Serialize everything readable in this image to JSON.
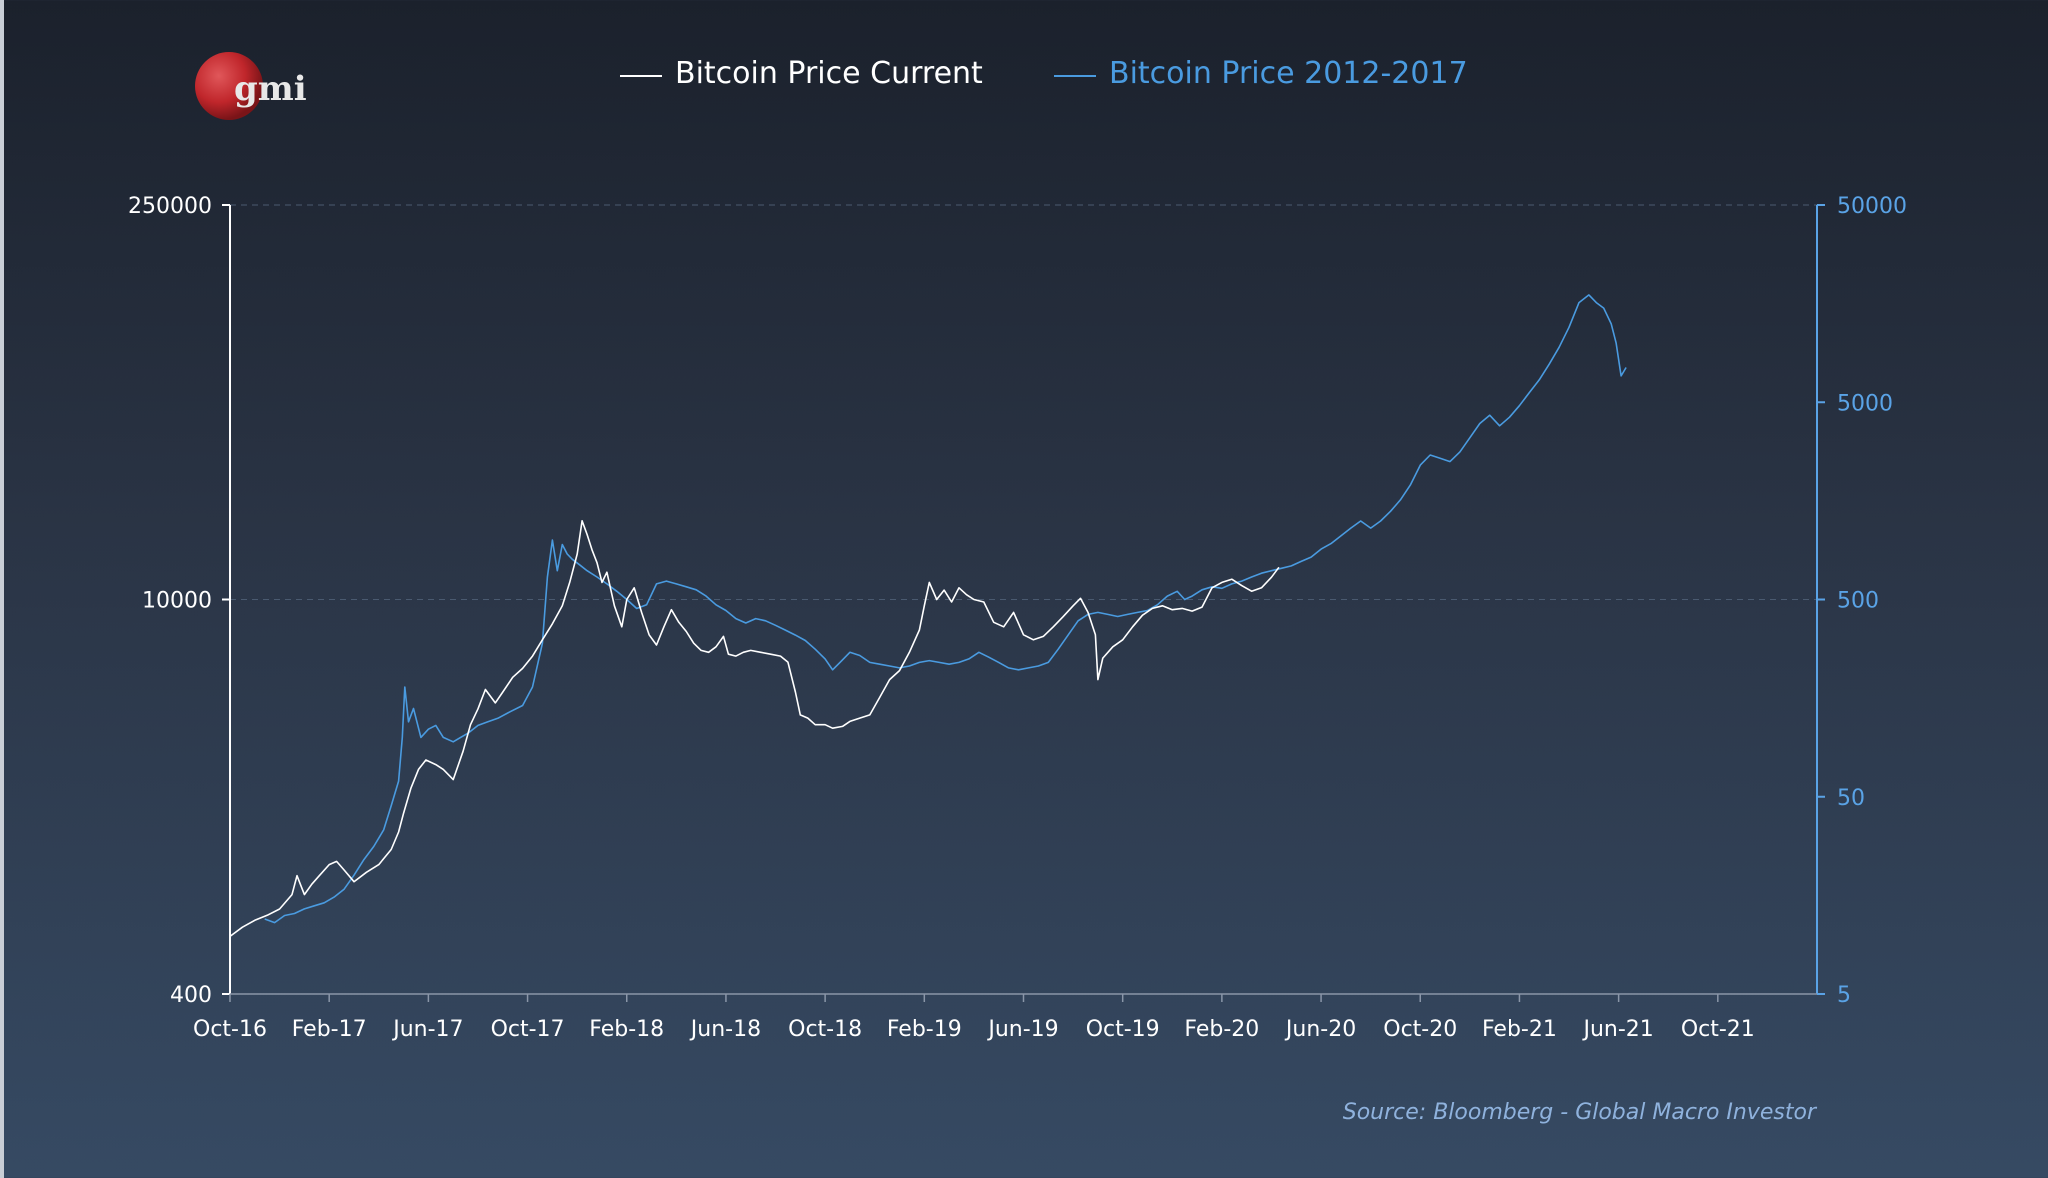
{
  "logo": {
    "text": "gmi"
  },
  "source": "Source: Bloomberg - Global Macro Investor",
  "colors": {
    "background_top": "#1b212c",
    "background_bottom": "#364a63",
    "current": "#ffffff",
    "history": "#4a9be0",
    "left_axis": "#ffffff",
    "right_axis": "#5aa3e6",
    "gridline": "#4a5a70",
    "logo_red": "#c0262b"
  },
  "chart_data": {
    "type": "line",
    "title": "",
    "legend": {
      "position": "top-center",
      "entries": [
        "Bitcoin Price Current",
        "Bitcoin Price 2012-2017"
      ]
    },
    "x_tick_labels": [
      "Oct-16",
      "Feb-17",
      "Jun-17",
      "Oct-17",
      "Feb-18",
      "Jun-18",
      "Oct-18",
      "Feb-19",
      "Jun-19",
      "Oct-19",
      "Feb-20",
      "Jun-20",
      "Oct-20",
      "Feb-21",
      "Jun-21",
      "Oct-21"
    ],
    "x_range_months": [
      0,
      64
    ],
    "y_left": {
      "scale": "log",
      "ticks": [
        "250000",
        "10000",
        "400"
      ],
      "range": [
        400,
        250000
      ]
    },
    "y_right": {
      "scale": "log",
      "ticks": [
        "50000",
        "5000",
        "500",
        "50",
        "5"
      ],
      "range": [
        5,
        50000
      ]
    },
    "grid": "horizontal dashed at major ticks",
    "series": [
      {
        "name": "Bitcoin Price Current",
        "axis": "left",
        "color": "#ffffff",
        "points": [
          [
            0.0,
            640
          ],
          [
            0.5,
            690
          ],
          [
            1.0,
            730
          ],
          [
            1.5,
            760
          ],
          [
            2.0,
            800
          ],
          [
            2.5,
            900
          ],
          [
            2.7,
            1050
          ],
          [
            3.0,
            900
          ],
          [
            3.3,
            980
          ],
          [
            3.6,
            1050
          ],
          [
            4.0,
            1150
          ],
          [
            4.3,
            1180
          ],
          [
            4.6,
            1100
          ],
          [
            5.0,
            1000
          ],
          [
            5.5,
            1080
          ],
          [
            6.0,
            1150
          ],
          [
            6.5,
            1300
          ],
          [
            6.8,
            1500
          ],
          [
            7.0,
            1750
          ],
          [
            7.3,
            2150
          ],
          [
            7.6,
            2500
          ],
          [
            7.9,
            2700
          ],
          [
            8.3,
            2600
          ],
          [
            8.6,
            2500
          ],
          [
            9.0,
            2300
          ],
          [
            9.4,
            2900
          ],
          [
            9.7,
            3600
          ],
          [
            10.0,
            4100
          ],
          [
            10.3,
            4800
          ],
          [
            10.7,
            4300
          ],
          [
            11.0,
            4700
          ],
          [
            11.4,
            5300
          ],
          [
            11.8,
            5700
          ],
          [
            12.2,
            6300
          ],
          [
            12.6,
            7200
          ],
          [
            13.0,
            8200
          ],
          [
            13.4,
            9500
          ],
          [
            13.7,
            11500
          ],
          [
            14.0,
            14500
          ],
          [
            14.2,
            19000
          ],
          [
            14.4,
            17000
          ],
          [
            14.6,
            15000
          ],
          [
            14.8,
            13500
          ],
          [
            15.0,
            11500
          ],
          [
            15.2,
            12500
          ],
          [
            15.5,
            9500
          ],
          [
            15.8,
            8000
          ],
          [
            16.0,
            10000
          ],
          [
            16.3,
            11000
          ],
          [
            16.6,
            9000
          ],
          [
            16.9,
            7500
          ],
          [
            17.2,
            6900
          ],
          [
            17.5,
            8000
          ],
          [
            17.8,
            9200
          ],
          [
            18.1,
            8300
          ],
          [
            18.4,
            7700
          ],
          [
            18.7,
            7000
          ],
          [
            19.0,
            6600
          ],
          [
            19.3,
            6500
          ],
          [
            19.6,
            6800
          ],
          [
            19.9,
            7400
          ],
          [
            20.1,
            6400
          ],
          [
            20.4,
            6300
          ],
          [
            20.7,
            6500
          ],
          [
            21.0,
            6600
          ],
          [
            21.4,
            6500
          ],
          [
            21.8,
            6400
          ],
          [
            22.2,
            6300
          ],
          [
            22.5,
            6000
          ],
          [
            22.8,
            4700
          ],
          [
            23.0,
            3900
          ],
          [
            23.3,
            3800
          ],
          [
            23.6,
            3600
          ],
          [
            24.0,
            3600
          ],
          [
            24.3,
            3500
          ],
          [
            24.7,
            3550
          ],
          [
            25.0,
            3700
          ],
          [
            25.4,
            3800
          ],
          [
            25.8,
            3900
          ],
          [
            26.2,
            4500
          ],
          [
            26.6,
            5200
          ],
          [
            27.0,
            5600
          ],
          [
            27.4,
            6500
          ],
          [
            27.8,
            7800
          ],
          [
            28.0,
            9500
          ],
          [
            28.2,
            11500
          ],
          [
            28.5,
            10000
          ],
          [
            28.8,
            10800
          ],
          [
            29.1,
            9800
          ],
          [
            29.4,
            11000
          ],
          [
            29.7,
            10400
          ],
          [
            30.0,
            10000
          ],
          [
            30.4,
            9800
          ],
          [
            30.8,
            8300
          ],
          [
            31.2,
            8000
          ],
          [
            31.6,
            9000
          ],
          [
            32.0,
            7500
          ],
          [
            32.4,
            7200
          ],
          [
            32.8,
            7400
          ],
          [
            33.2,
            8000
          ],
          [
            33.6,
            8700
          ],
          [
            34.0,
            9500
          ],
          [
            34.3,
            10100
          ],
          [
            34.6,
            9000
          ],
          [
            34.9,
            7500
          ],
          [
            35.0,
            5200
          ],
          [
            35.2,
            6200
          ],
          [
            35.6,
            6800
          ],
          [
            36.0,
            7200
          ],
          [
            36.4,
            8000
          ],
          [
            36.8,
            8800
          ],
          [
            37.2,
            9300
          ],
          [
            37.6,
            9500
          ],
          [
            38.0,
            9200
          ],
          [
            38.4,
            9300
          ],
          [
            38.8,
            9100
          ],
          [
            39.2,
            9400
          ],
          [
            39.6,
            11000
          ],
          [
            40.0,
            11500
          ],
          [
            40.4,
            11800
          ],
          [
            40.8,
            11200
          ],
          [
            41.2,
            10700
          ],
          [
            41.6,
            11000
          ],
          [
            42.0,
            12000
          ],
          [
            42.3,
            13000
          ]
        ]
      },
      {
        "name": "Bitcoin Price 2012-2017",
        "axis": "right",
        "color": "#4a9be0",
        "points": [
          [
            1.4,
            12.0
          ],
          [
            1.8,
            11.5
          ],
          [
            2.2,
            12.5
          ],
          [
            2.6,
            12.8
          ],
          [
            3.0,
            13.5
          ],
          [
            3.4,
            14.0
          ],
          [
            3.8,
            14.5
          ],
          [
            4.2,
            15.5
          ],
          [
            4.6,
            17.0
          ],
          [
            5.0,
            20.0
          ],
          [
            5.4,
            24.0
          ],
          [
            5.8,
            28.0
          ],
          [
            6.2,
            34.0
          ],
          [
            6.5,
            45.0
          ],
          [
            6.8,
            60.0
          ],
          [
            6.95,
            100.0
          ],
          [
            7.05,
            180.0
          ],
          [
            7.2,
            120.0
          ],
          [
            7.4,
            140.0
          ],
          [
            7.7,
            100.0
          ],
          [
            8.0,
            110.0
          ],
          [
            8.3,
            115.0
          ],
          [
            8.6,
            100.0
          ],
          [
            9.0,
            95.0
          ],
          [
            9.3,
            100.0
          ],
          [
            9.6,
            105.0
          ],
          [
            10.0,
            115.0
          ],
          [
            10.4,
            120.0
          ],
          [
            10.8,
            125.0
          ],
          [
            11.3,
            135.0
          ],
          [
            11.8,
            145.0
          ],
          [
            12.2,
            180.0
          ],
          [
            12.6,
            300.0
          ],
          [
            12.8,
            650.0
          ],
          [
            13.0,
            1000.0
          ],
          [
            13.2,
            700.0
          ],
          [
            13.4,
            950.0
          ],
          [
            13.6,
            850.0
          ],
          [
            13.8,
            800.0
          ],
          [
            14.1,
            750.0
          ],
          [
            14.4,
            700.0
          ],
          [
            14.8,
            650.0
          ],
          [
            15.2,
            600.0
          ],
          [
            15.6,
            550.0
          ],
          [
            16.0,
            500.0
          ],
          [
            16.4,
            450.0
          ],
          [
            16.8,
            470.0
          ],
          [
            17.2,
            600.0
          ],
          [
            17.6,
            620.0
          ],
          [
            18.0,
            600.0
          ],
          [
            18.4,
            580.0
          ],
          [
            18.8,
            560.0
          ],
          [
            19.2,
            520.0
          ],
          [
            19.6,
            470.0
          ],
          [
            20.0,
            440.0
          ],
          [
            20.4,
            400.0
          ],
          [
            20.8,
            380.0
          ],
          [
            21.2,
            400.0
          ],
          [
            21.6,
            390.0
          ],
          [
            22.0,
            370.0
          ],
          [
            22.4,
            350.0
          ],
          [
            22.8,
            330.0
          ],
          [
            23.2,
            310.0
          ],
          [
            23.6,
            280.0
          ],
          [
            24.0,
            250.0
          ],
          [
            24.3,
            220.0
          ],
          [
            24.6,
            240.0
          ],
          [
            25.0,
            270.0
          ],
          [
            25.4,
            260.0
          ],
          [
            25.8,
            240.0
          ],
          [
            26.2,
            235.0
          ],
          [
            26.6,
            230.0
          ],
          [
            27.0,
            225.0
          ],
          [
            27.4,
            230.0
          ],
          [
            27.8,
            240.0
          ],
          [
            28.2,
            245.0
          ],
          [
            28.6,
            240.0
          ],
          [
            29.0,
            235.0
          ],
          [
            29.4,
            240.0
          ],
          [
            29.8,
            250.0
          ],
          [
            30.2,
            270.0
          ],
          [
            30.6,
            255.0
          ],
          [
            31.0,
            240.0
          ],
          [
            31.4,
            225.0
          ],
          [
            31.8,
            220.0
          ],
          [
            32.2,
            225.0
          ],
          [
            32.6,
            230.0
          ],
          [
            33.0,
            240.0
          ],
          [
            33.4,
            280.0
          ],
          [
            33.8,
            330.0
          ],
          [
            34.2,
            390.0
          ],
          [
            34.6,
            420.0
          ],
          [
            35.0,
            430.0
          ],
          [
            35.4,
            420.0
          ],
          [
            35.8,
            410.0
          ],
          [
            36.2,
            420.0
          ],
          [
            36.6,
            430.0
          ],
          [
            37.0,
            440.0
          ],
          [
            37.4,
            470.0
          ],
          [
            37.8,
            520.0
          ],
          [
            38.2,
            550.0
          ],
          [
            38.5,
            500.0
          ],
          [
            38.8,
            520.0
          ],
          [
            39.2,
            560.0
          ],
          [
            39.6,
            580.0
          ],
          [
            40.0,
            570.0
          ],
          [
            40.4,
            600.0
          ],
          [
            40.8,
            620.0
          ],
          [
            41.2,
            650.0
          ],
          [
            41.6,
            680.0
          ],
          [
            42.0,
            700.0
          ],
          [
            42.4,
            720.0
          ],
          [
            42.8,
            740.0
          ],
          [
            43.2,
            780.0
          ],
          [
            43.6,
            820.0
          ],
          [
            44.0,
            900.0
          ],
          [
            44.4,
            960.0
          ],
          [
            44.8,
            1050.0
          ],
          [
            45.2,
            1150.0
          ],
          [
            45.6,
            1250.0
          ],
          [
            46.0,
            1150.0
          ],
          [
            46.4,
            1250.0
          ],
          [
            46.8,
            1400.0
          ],
          [
            47.2,
            1600.0
          ],
          [
            47.6,
            1900.0
          ],
          [
            48.0,
            2400.0
          ],
          [
            48.4,
            2700.0
          ],
          [
            48.8,
            2600.0
          ],
          [
            49.2,
            2500.0
          ],
          [
            49.6,
            2800.0
          ],
          [
            50.0,
            3300.0
          ],
          [
            50.4,
            3900.0
          ],
          [
            50.8,
            4300.0
          ],
          [
            51.2,
            3800.0
          ],
          [
            51.6,
            4200.0
          ],
          [
            52.0,
            4800.0
          ],
          [
            52.4,
            5600.0
          ],
          [
            52.8,
            6500.0
          ],
          [
            53.2,
            7800.0
          ],
          [
            53.6,
            9500.0
          ],
          [
            54.0,
            12000.0
          ],
          [
            54.4,
            16000.0
          ],
          [
            54.8,
            17500.0
          ],
          [
            55.1,
            16000.0
          ],
          [
            55.4,
            15000.0
          ],
          [
            55.7,
            12500.0
          ],
          [
            55.9,
            10000.0
          ],
          [
            56.1,
            6800.0
          ],
          [
            56.3,
            7500.0
          ]
        ]
      }
    ]
  }
}
